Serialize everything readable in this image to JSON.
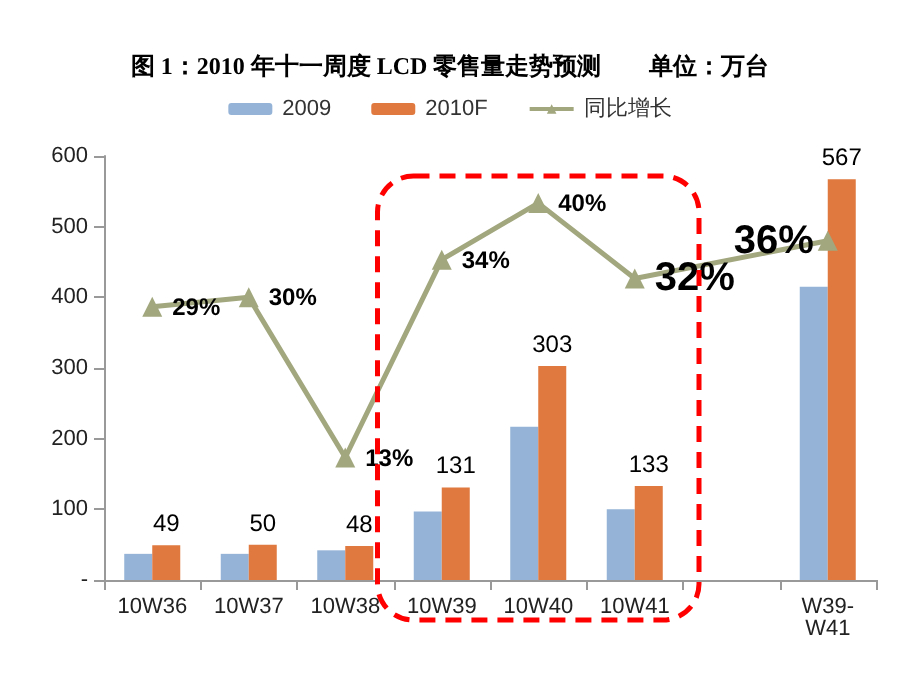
{
  "chart_data": {
    "type": "bar",
    "title": "图 1：2010 年十一周度 LCD 零售量走势预测　　单位：万台",
    "categories": [
      "10W36",
      "10W37",
      "10W38",
      "10W39",
      "10W40",
      "10W41",
      null,
      "W39-W41"
    ],
    "series": [
      {
        "name": "2009",
        "color": "#95b3d7",
        "values": [
          37,
          37,
          42,
          97,
          217,
          100,
          null,
          415
        ]
      },
      {
        "name": "2010F",
        "color": "#e0793f",
        "values": [
          49,
          50,
          48,
          131,
          303,
          133,
          null,
          567
        ],
        "value_labels": [
          "49",
          "50",
          "48",
          "131",
          "303",
          "133",
          null,
          "567"
        ]
      },
      {
        "name": "同比增长",
        "type": "line",
        "axis": "y2",
        "color": "#a2a77e",
        "marker": "triangle",
        "values": [
          29,
          30,
          13,
          34,
          40,
          32,
          null,
          36
        ],
        "value_labels": [
          "29%",
          "30%",
          "13%",
          "34%",
          "40%",
          "32%",
          null,
          "36%"
        ]
      }
    ],
    "ylim": [
      0,
      600
    ],
    "yticks": [
      {
        "value": 0,
        "label": "-"
      },
      100,
      200,
      300,
      400,
      500,
      600
    ],
    "y2lim": [
      0,
      45
    ],
    "grid": false,
    "legend": "top"
  }
}
